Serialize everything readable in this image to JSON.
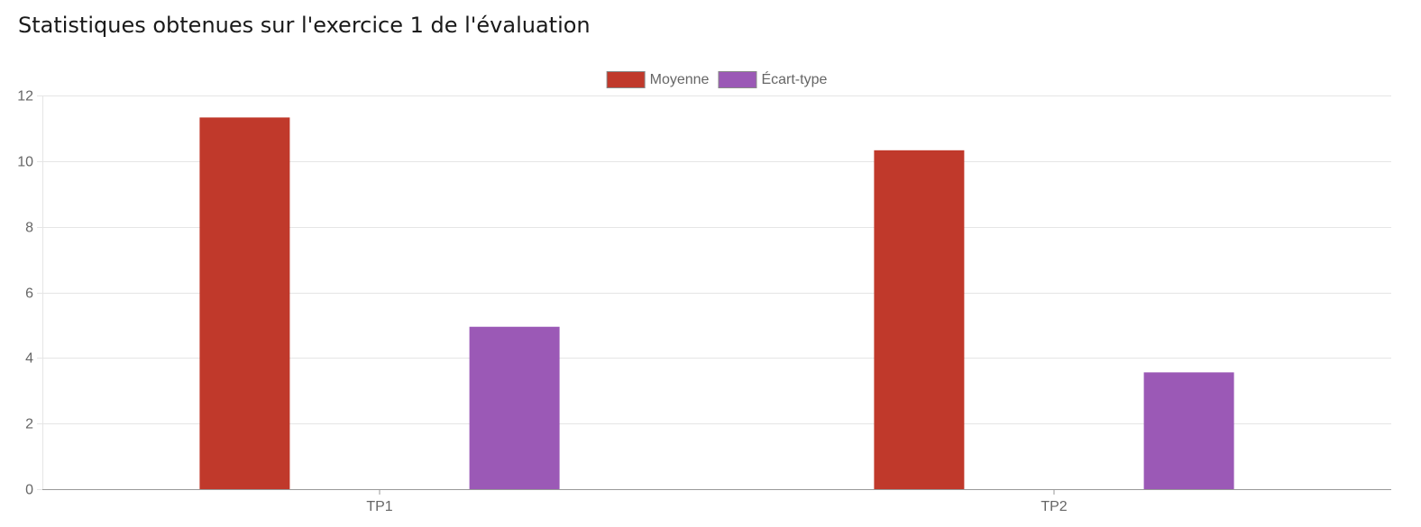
{
  "page": {
    "title": "Statistiques obtenues sur l'exercice 1 de l'évaluation"
  },
  "chart_data": {
    "type": "bar",
    "categories": [
      "TP1",
      "TP2"
    ],
    "series": [
      {
        "name": "Moyenne",
        "color": "#c0392b",
        "values": [
          11.33,
          10.33
        ]
      },
      {
        "name": "Écart-type",
        "color": "#9b59b6",
        "values": [
          4.95,
          3.56
        ]
      }
    ],
    "ylim": [
      0,
      12
    ],
    "yticks": [
      0,
      2,
      4,
      6,
      8,
      10,
      12
    ],
    "grid": true,
    "legend_position": "top"
  }
}
